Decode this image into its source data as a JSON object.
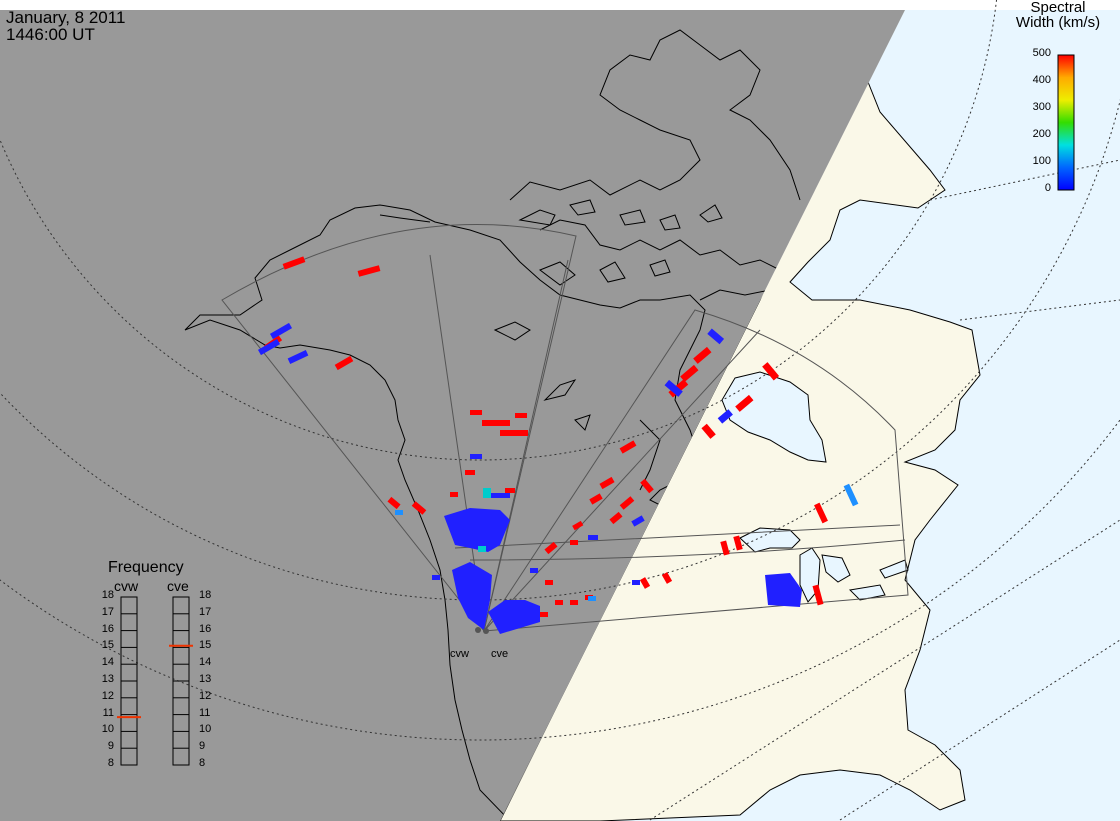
{
  "title": {
    "date": "January, 8 2011",
    "time": "1446:00 UT"
  },
  "colorbar": {
    "title_line1": "Spectral",
    "title_line2": "Width (km/s)",
    "ticks": [
      "500",
      "400",
      "300",
      "200",
      "100",
      "0"
    ],
    "colors": [
      "#ff0000",
      "#ffaa00",
      "#eeee00",
      "#33dd00",
      "#00e0e0",
      "#0066ff",
      "#0000ff"
    ]
  },
  "colors": {
    "night": "#999999",
    "day_land": "#faf8e8",
    "day_ocean": "#e8f6ff",
    "lake": "#e8f6ff",
    "coast": "#000000",
    "fov_line": "#555555",
    "high_width": "#ff0000",
    "low_width": "#2020ff",
    "mid_width": "#1e90ff",
    "cyan_width": "#00cccc",
    "freq_marker": "#ee3300"
  },
  "frequency": {
    "heading": "Frequency",
    "radars": [
      {
        "code": "cvw",
        "freq_mhz": 10.85
      },
      {
        "code": "cve",
        "freq_mhz": 15.1
      }
    ],
    "scale": [
      "18",
      "17",
      "16",
      "15",
      "14",
      "13",
      "12",
      "11",
      "10",
      "9",
      "8"
    ]
  },
  "sites": [
    {
      "code": "cvw"
    },
    {
      "code": "cve"
    }
  ]
}
